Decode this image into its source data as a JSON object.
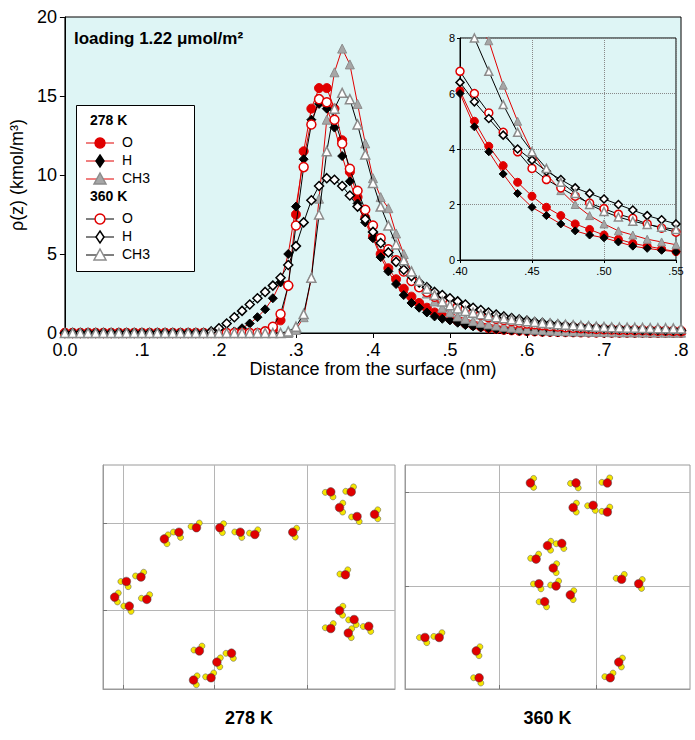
{
  "chart_data": [
    {
      "type": "line",
      "annotation": "loading 1.22 μmol/m²",
      "x_label": "Distance from the surface (nm)",
      "y_label": "ρ(z) (kmol/m³)",
      "xlim": [
        0,
        0.8
      ],
      "xticks": [
        {
          "value": 0,
          "label": "0.0"
        },
        {
          "value": 0.1,
          "label": ".1"
        },
        {
          "value": 0.2,
          "label": ".2"
        },
        {
          "value": 0.3,
          "label": ".3"
        },
        {
          "value": 0.4,
          "label": ".4"
        },
        {
          "value": 0.5,
          "label": ".5"
        },
        {
          "value": 0.6,
          "label": ".6"
        },
        {
          "value": 0.7,
          "label": ".7"
        },
        {
          "value": 0.8,
          "label": ".8"
        }
      ],
      "ylim": [
        0,
        20
      ],
      "yticks": [
        0,
        5,
        10,
        15,
        20
      ],
      "grid": false,
      "legend": "upper left",
      "x": [
        0,
        0.01,
        0.02,
        0.03,
        0.04,
        0.05,
        0.06,
        0.07,
        0.08,
        0.09,
        0.1,
        0.11,
        0.12,
        0.13,
        0.14,
        0.15,
        0.16,
        0.17,
        0.18,
        0.19,
        0.2,
        0.21,
        0.22,
        0.23,
        0.24,
        0.25,
        0.26,
        0.27,
        0.28,
        0.29,
        0.3,
        0.31,
        0.32,
        0.33,
        0.34,
        0.35,
        0.36,
        0.37,
        0.38,
        0.39,
        0.4,
        0.41,
        0.42,
        0.43,
        0.44,
        0.45,
        0.46,
        0.47,
        0.48,
        0.49,
        0.5,
        0.51,
        0.52,
        0.53,
        0.54,
        0.55,
        0.56,
        0.57,
        0.58,
        0.59,
        0.6,
        0.61,
        0.62,
        0.63,
        0.64,
        0.65,
        0.66,
        0.67,
        0.68,
        0.69,
        0.7,
        0.71,
        0.72,
        0.73,
        0.74,
        0.75,
        0.76,
        0.77,
        0.78,
        0.79,
        0.8
      ],
      "series": [
        {
          "name": "O",
          "group": "278 K",
          "color": "#e00000",
          "marker": "circle",
          "values": [
            0,
            0,
            0,
            0,
            0,
            0,
            0,
            0,
            0,
            0,
            0,
            0,
            0,
            0,
            0,
            0,
            0,
            0,
            0,
            0,
            0,
            0,
            0,
            0,
            0,
            0,
            0,
            0.2,
            0.8,
            3,
            7.5,
            11.5,
            14.2,
            15.5,
            15.5,
            14.2,
            12.2,
            10.2,
            8.6,
            7.3,
            6.1,
            5.0,
            4.1,
            3.4,
            2.8,
            2.3,
            1.9,
            1.6,
            1.3,
            1.1,
            0.9,
            0.75,
            0.6,
            0.5,
            0.4,
            0.3,
            0.25,
            0.2,
            0.17,
            0.14,
            0.12,
            0.1,
            0.08,
            0.07,
            0.06,
            0.05,
            0.04,
            0.03,
            0.03,
            0.02,
            0.02,
            0.01,
            0.01,
            0.01,
            0.01,
            0.01,
            0,
            0,
            0,
            0,
            0
          ]
        },
        {
          "name": "H",
          "group": "278 K",
          "color": "#000000",
          "marker": "diamond",
          "values": [
            0,
            0,
            0,
            0,
            0,
            0,
            0,
            0,
            0,
            0,
            0,
            0,
            0,
            0,
            0,
            0,
            0,
            0,
            0,
            0,
            0,
            0,
            0.1,
            0.3,
            0.6,
            1.0,
            1.5,
            2.2,
            3.2,
            5,
            8,
            11,
            13.5,
            14.5,
            14.2,
            13,
            11.2,
            9.6,
            8.2,
            7.0,
            6.0,
            4.8,
            3.9,
            3.1,
            2.4,
            1.9,
            1.6,
            1.3,
            1.05,
            0.9,
            0.8,
            0.65,
            0.5,
            0.42,
            0.35,
            0.3,
            0.24,
            0.2,
            0.16,
            0.13,
            0.11,
            0.09,
            0.07,
            0.06,
            0.05,
            0.04,
            0.03,
            0.03,
            0.02,
            0.02,
            0.01,
            0.01,
            0.01,
            0.01,
            0,
            0,
            0,
            0,
            0,
            0,
            0
          ]
        },
        {
          "name": "CH3",
          "group": "278 K",
          "color": "#a6a6a6",
          "marker": "triangle",
          "values": [
            0,
            0,
            0,
            0,
            0,
            0,
            0,
            0,
            0,
            0,
            0,
            0,
            0,
            0,
            0,
            0,
            0,
            0,
            0,
            0,
            0,
            0,
            0,
            0,
            0,
            0,
            0,
            0,
            0,
            0,
            0.2,
            1,
            3.5,
            8.5,
            13.5,
            16.5,
            18,
            17,
            14.5,
            12,
            9.8,
            8.6,
            7.9,
            6.3,
            5.0,
            3.9,
            3.1,
            2.5,
            2.0,
            1.6,
            1.3,
            1.05,
            0.9,
            0.75,
            0.65,
            0.55,
            0.47,
            0.4,
            0.34,
            0.29,
            0.25,
            0.21,
            0.18,
            0.15,
            0.13,
            0.11,
            0.1,
            0.09,
            0.08,
            0.07,
            0.06,
            0.05,
            0.05,
            0.04,
            0.04,
            0.03,
            0.03,
            0.03,
            0.02,
            0.02,
            0.02
          ]
        },
        {
          "name": "O",
          "group": "360 K",
          "color": "#e00000",
          "marker": "circle-open",
          "values": [
            0,
            0,
            0,
            0,
            0,
            0,
            0,
            0,
            0,
            0,
            0,
            0,
            0,
            0,
            0,
            0,
            0,
            0,
            0,
            0,
            0,
            0,
            0,
            0,
            0,
            0,
            0.1,
            0.4,
            1.2,
            3,
            6.8,
            10.5,
            13.2,
            14.8,
            14.6,
            13.5,
            12,
            10.4,
            9,
            7.8,
            6.8,
            6.0,
            5.3,
            4.6,
            3.9,
            3.3,
            2.9,
            2.6,
            2.3,
            2.05,
            1.85,
            1.65,
            1.5,
            1.3,
            1.15,
            1.0,
            0.9,
            0.82,
            0.74,
            0.67,
            0.6,
            0.55,
            0.5,
            0.45,
            0.41,
            0.37,
            0.34,
            0.31,
            0.28,
            0.26,
            0.24,
            0.22,
            0.2,
            0.19,
            0.18,
            0.17,
            0.16,
            0.15,
            0.14,
            0.13,
            0.12
          ]
        },
        {
          "name": "H",
          "group": "360 K",
          "color": "#000000",
          "marker": "diamond-open",
          "values": [
            0,
            0,
            0,
            0,
            0,
            0,
            0,
            0,
            0,
            0,
            0,
            0,
            0,
            0,
            0,
            0,
            0,
            0,
            0,
            0.1,
            0.3,
            0.6,
            1.0,
            1.4,
            1.8,
            2.2,
            2.6,
            3.0,
            3.5,
            4.3,
            5.5,
            7.0,
            8.4,
            9.3,
            9.8,
            9.7,
            9.3,
            8.7,
            8.0,
            7.2,
            6.4,
            5.7,
            5.1,
            4.5,
            4.0,
            3.6,
            3.2,
            2.9,
            2.6,
            2.4,
            2.2,
            2.0,
            1.8,
            1.6,
            1.45,
            1.3,
            1.17,
            1.05,
            0.95,
            0.86,
            0.78,
            0.7,
            0.64,
            0.58,
            0.53,
            0.48,
            0.44,
            0.4,
            0.37,
            0.34,
            0.31,
            0.29,
            0.27,
            0.25,
            0.23,
            0.21,
            0.2,
            0.19,
            0.18,
            0.17,
            0.16
          ]
        },
        {
          "name": "CH3",
          "group": "360 K",
          "color": "#a6a6a6",
          "marker": "triangle-open",
          "values": [
            0,
            0,
            0,
            0,
            0,
            0,
            0,
            0,
            0,
            0,
            0,
            0,
            0,
            0,
            0,
            0,
            0,
            0,
            0,
            0,
            0,
            0,
            0,
            0,
            0,
            0,
            0,
            0,
            0,
            0.1,
            0.4,
            1.2,
            3.5,
            7.5,
            11.5,
            14.2,
            15.2,
            14.8,
            13.2,
            11.3,
            9.5,
            8.0,
            6.8,
            5.6,
            4.6,
            3.9,
            3.3,
            2.8,
            2.4,
            2.0,
            1.75,
            1.55,
            1.4,
            1.28,
            1.18,
            1.1,
            1.0,
            0.93,
            0.86,
            0.8,
            0.74,
            0.69,
            0.64,
            0.6,
            0.56,
            0.52,
            0.49,
            0.46,
            0.43,
            0.4,
            0.38,
            0.36,
            0.35,
            0.34,
            0.33,
            0.32,
            0.31,
            0.3,
            0.3,
            0.29,
            0.28
          ]
        }
      ],
      "inset": {
        "xlim": [
          0.4,
          0.55
        ],
        "xticks": [
          {
            "value": 0.4,
            "label": ".40"
          },
          {
            "value": 0.45,
            "label": ".45"
          },
          {
            "value": 0.5,
            "label": ".50"
          },
          {
            "value": 0.55,
            "label": ".55"
          }
        ],
        "ylim": [
          0,
          8
        ],
        "yticks": [
          0,
          2,
          4,
          6,
          8
        ],
        "grid": true
      }
    },
    {
      "type": "scatter",
      "title": "278 K",
      "marker": "water",
      "color": "#e00000",
      "xlim": [
        0,
        10
      ],
      "ylim": [
        0,
        10
      ],
      "xticks": [
        0.7,
        3.8,
        7.0
      ],
      "yticks": [
        3.5,
        7.4
      ],
      "grid": true,
      "tick_labels": false,
      "x": [
        9.3,
        7.8,
        8.5,
        8.1,
        8.7,
        8.3,
        8.1,
        8.6,
        7.8,
        8.4,
        9.1,
        3.3,
        3.9,
        4.4,
        3.7,
        3.1,
        0.8,
        1.3,
        0.4,
        0.9,
        1.5,
        2.1,
        2.6,
        3.2,
        4.0,
        4.7,
        5.2,
        6.5
      ],
      "values": [
        7.8,
        8.8,
        8.8,
        8.1,
        7.7,
        5.1,
        3.5,
        3.1,
        2.7,
        2.5,
        2.8,
        1.7,
        1.2,
        1.6,
        0.5,
        0.4,
        4.8,
        5.0,
        4.1,
        3.7,
        4.0,
        6.7,
        7.0,
        7.2,
        7.2,
        7.0,
        6.9,
        7.0
      ]
    },
    {
      "type": "scatter",
      "title": "360 K",
      "marker": "water",
      "color": "#e00000",
      "xlim": [
        0,
        10
      ],
      "ylim": [
        0,
        10
      ],
      "xticks": [
        3.3,
        6.7
      ],
      "yticks": [
        4.6,
        8.8
      ],
      "grid": true,
      "tick_labels": false,
      "x": [
        4.4,
        6.0,
        7.1,
        5.9,
        6.6,
        7.1,
        5.0,
        5.5,
        4.6,
        5.2,
        4.7,
        5.3,
        5.8,
        4.9,
        7.6,
        8.2,
        0.7,
        1.2,
        2.5,
        2.6,
        7.2,
        7.5
      ],
      "values": [
        9.2,
        9.2,
        9.2,
        8.1,
        8.2,
        7.9,
        6.4,
        6.5,
        5.8,
        5.4,
        4.7,
        4.6,
        4.2,
        3.9,
        4.9,
        4.7,
        2.3,
        2.3,
        1.7,
        0.5,
        0.5,
        1.2
      ]
    }
  ]
}
